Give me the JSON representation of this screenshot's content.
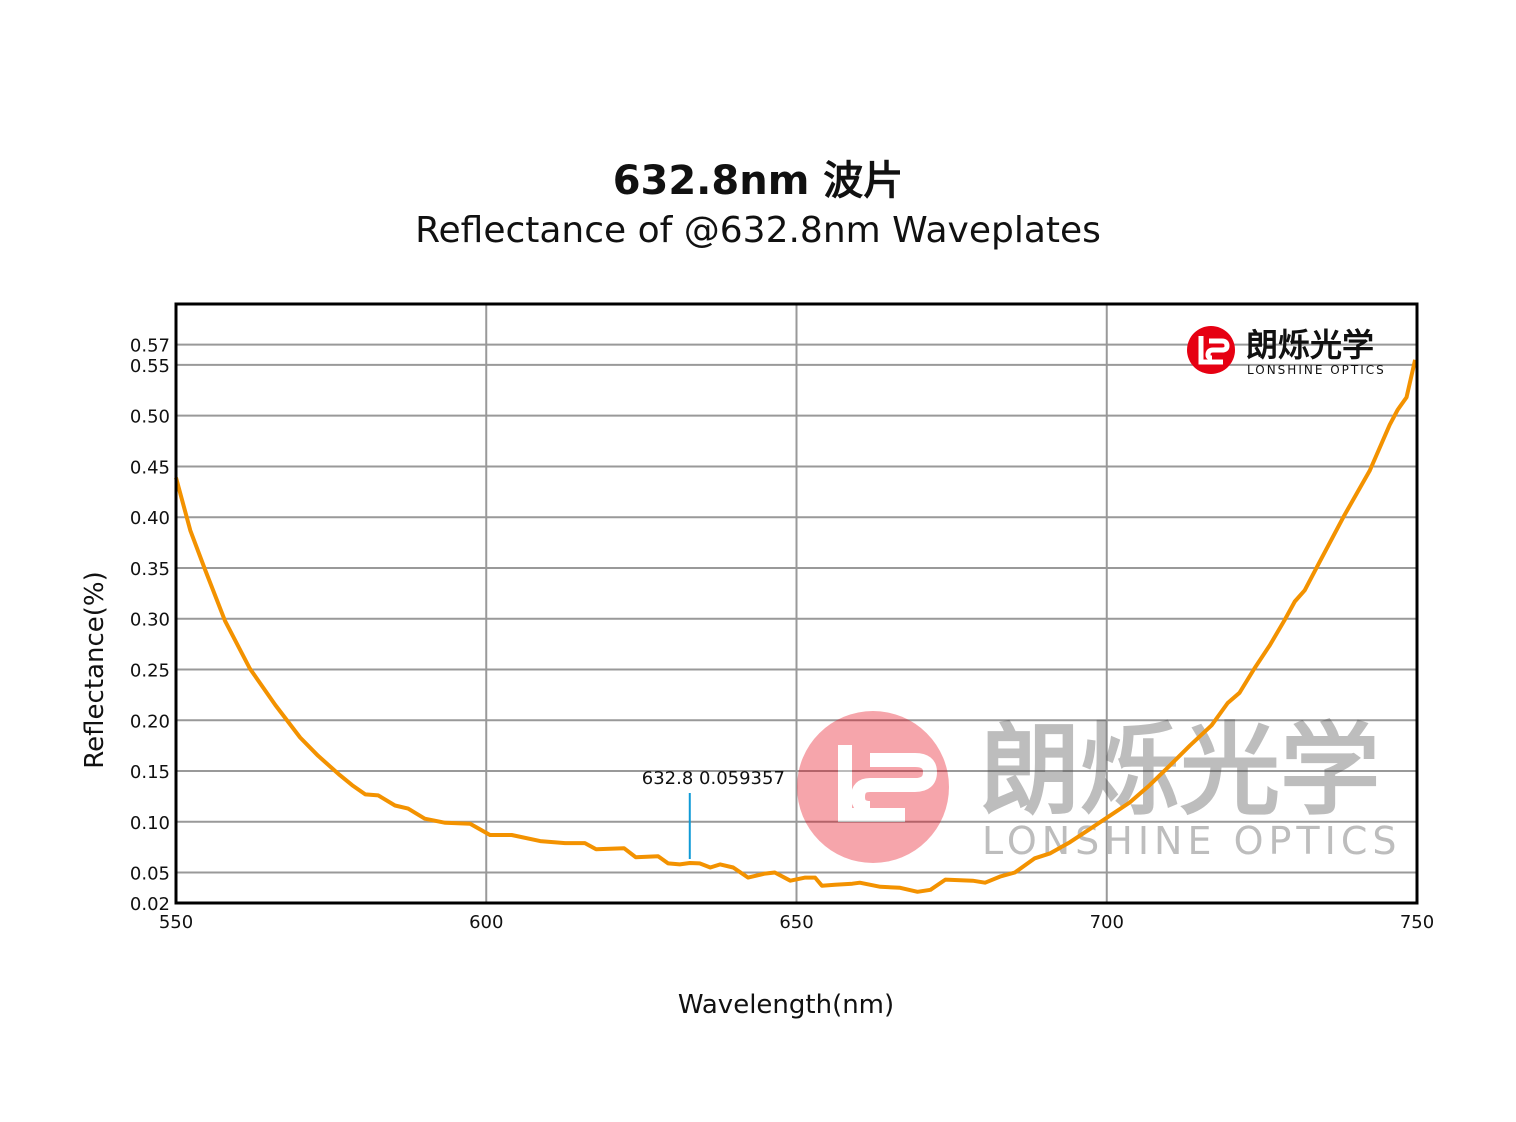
{
  "title": "632.8nm 波片",
  "subtitle": "Reflectance of @632.8nm Waveplates",
  "logo": {
    "cn": "朗烁光学",
    "en": "LONSHINE OPTICS",
    "color": "#e60012"
  },
  "watermark": {
    "cn": "朗烁光学",
    "en": "LONSHINE OPTICS"
  },
  "chart_data": {
    "type": "line",
    "title": "632.8nm 波片",
    "subtitle": "Reflectance of @632.8nm Waveplates",
    "xlabel": "Wavelength(nm)",
    "ylabel": "Reflectance(%)",
    "xlim": [
      550,
      750
    ],
    "ylim": [
      0.02,
      0.61
    ],
    "xticks": [
      "550",
      "600",
      "650",
      "700",
      "750"
    ],
    "yticks": [
      "0.02",
      "0.05",
      "0.10",
      "0.15",
      "0.20",
      "0.25",
      "0.30",
      "0.35",
      "0.40",
      "0.45",
      "0.50",
      "0.55",
      "0.57"
    ],
    "grid": true,
    "line_color": "#f39200",
    "annotation": {
      "x": 632.8,
      "y": 0.059357,
      "text": "632.8 0.059357",
      "color": "#0f9ad6"
    },
    "series": [
      {
        "x": [
          550,
          552.3,
          554.7,
          557.9,
          561.9,
          566,
          570,
          572.9,
          576.4,
          578.4,
          580.5,
          582.6,
          585.3,
          587.4,
          590.1,
          593.4,
          597.4,
          600.6,
          604.1,
          608.7,
          612.7,
          615.9,
          617.7,
          622.2,
          624.1,
          627.7,
          629.3,
          631.2,
          632.8,
          634.4,
          636.1,
          637.7,
          639.8,
          642.2,
          644.9,
          646.5,
          649,
          651.4,
          653,
          654.1,
          656.2,
          659,
          660.2,
          663.5,
          666.7,
          669.5,
          671.6,
          674,
          678.4,
          680.4,
          682.8,
          685.2,
          688.4,
          690.9,
          694.1,
          697.3,
          700.5,
          703.7,
          706.9,
          710.1,
          713.4,
          716.9,
          719.5,
          721.4,
          723.8,
          726.3,
          728.7,
          730.3,
          731.9,
          734.3,
          738.3,
          742.4,
          745.6,
          746.9,
          748.3,
          749.7
        ],
        "y": [
          0.439,
          0.387,
          0.348,
          0.298,
          0.251,
          0.215,
          0.183,
          0.165,
          0.146,
          0.136,
          0.127,
          0.126,
          0.116,
          0.113,
          0.103,
          0.099,
          0.098,
          0.087,
          0.087,
          0.081,
          0.079,
          0.079,
          0.073,
          0.074,
          0.065,
          0.066,
          0.059,
          0.058,
          0.0594,
          0.059,
          0.055,
          0.058,
          0.055,
          0.045,
          0.049,
          0.05,
          0.042,
          0.045,
          0.045,
          0.037,
          0.038,
          0.039,
          0.04,
          0.036,
          0.035,
          0.031,
          0.033,
          0.043,
          0.042,
          0.04,
          0.046,
          0.05,
          0.064,
          0.069,
          0.08,
          0.093,
          0.106,
          0.119,
          0.136,
          0.155,
          0.175,
          0.195,
          0.217,
          0.227,
          0.251,
          0.274,
          0.299,
          0.317,
          0.328,
          0.356,
          0.402,
          0.446,
          0.491,
          0.506,
          0.518,
          0.555
        ]
      }
    ]
  }
}
